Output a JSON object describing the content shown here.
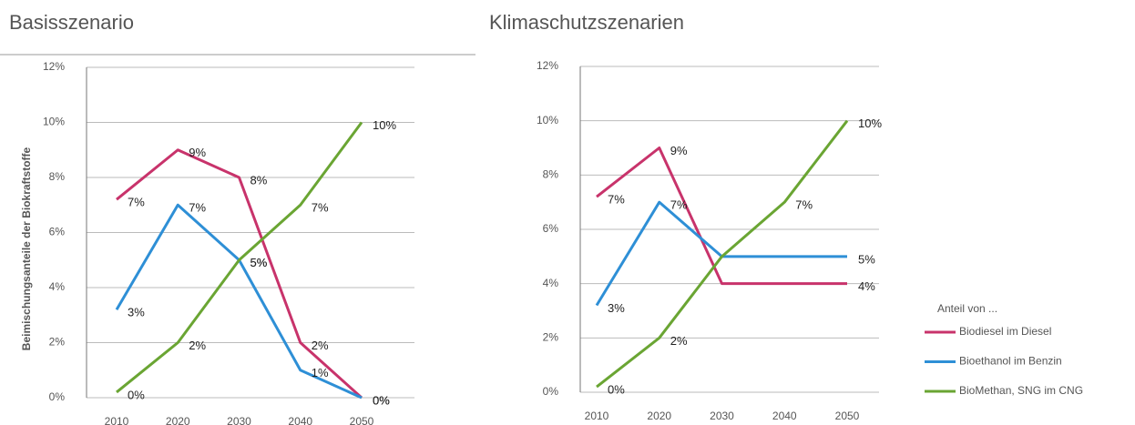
{
  "chart_data": [
    {
      "type": "line",
      "title": "Basisszenario",
      "y_label": "Beimischungsanteile der Biokraftstoffe",
      "categories": [
        "2010",
        "2020",
        "2030",
        "2040",
        "2050"
      ],
      "ylim": [
        0,
        12
      ],
      "yticks": [
        {
          "value": 0,
          "label": "0%"
        },
        {
          "value": 2,
          "label": "2%"
        },
        {
          "value": 4,
          "label": "4%"
        },
        {
          "value": 6,
          "label": "6%"
        },
        {
          "value": 8,
          "label": "8%"
        },
        {
          "value": 10,
          "label": "10%"
        },
        {
          "value": 12,
          "label": "12%"
        }
      ],
      "grid": true,
      "legend": false,
      "series": [
        {
          "color": "#c8336b",
          "values": [
            7.2,
            9,
            8,
            2,
            0
          ],
          "value_labels": [
            "7%",
            "9%",
            "8%",
            "2%",
            "0%"
          ]
        },
        {
          "color": "#2e8fd6",
          "values": [
            3.2,
            7,
            5,
            1,
            0
          ],
          "value_labels": [
            "3%",
            "7%",
            "5%",
            "1%",
            "0%"
          ]
        },
        {
          "color": "#6aa533",
          "values": [
            0.2,
            2,
            5,
            7,
            10
          ],
          "value_labels": [
            "0%",
            "2%",
            "5%",
            "7%",
            "10%"
          ]
        }
      ]
    },
    {
      "type": "line",
      "title": "Klimaschutzszenarien",
      "categories": [
        "2010",
        "2020",
        "2030",
        "2040",
        "2050"
      ],
      "ylim": [
        0,
        12
      ],
      "yticks": [
        {
          "value": 0,
          "label": "0%"
        },
        {
          "value": 2,
          "label": "2%"
        },
        {
          "value": 4,
          "label": "4%"
        },
        {
          "value": 6,
          "label": "6%"
        },
        {
          "value": 8,
          "label": "8%"
        },
        {
          "value": 10,
          "label": "10%"
        },
        {
          "value": 12,
          "label": "12%"
        }
      ],
      "grid": true,
      "legend": "right",
      "legend_title": "Anteil von ...",
      "series": [
        {
          "name": "Biodiesel im Diesel",
          "color": "#c8336b",
          "values": [
            7.2,
            9,
            4,
            4,
            4
          ],
          "value_labels": [
            "7%",
            "9%",
            null,
            null,
            "4%"
          ]
        },
        {
          "name": "Bioethanol im Benzin",
          "color": "#2e8fd6",
          "values": [
            3.2,
            7,
            5,
            5,
            5
          ],
          "value_labels": [
            "3%",
            "7%",
            null,
            null,
            "5%"
          ]
        },
        {
          "name": "BioMethan, SNG im CNG",
          "color": "#6aa533",
          "values": [
            0.2,
            2,
            5,
            7,
            10
          ],
          "value_labels": [
            "0%",
            "2%",
            null,
            "7%",
            "10%"
          ]
        }
      ]
    }
  ]
}
